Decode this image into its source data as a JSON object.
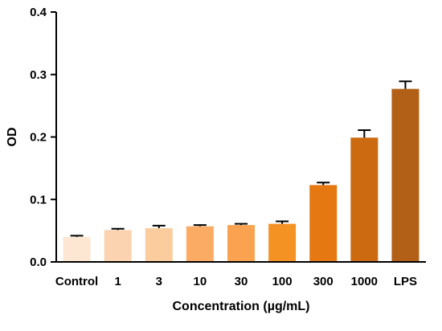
{
  "chart_data": {
    "type": "bar",
    "title": "",
    "xlabel": "Concentration (µg/mL)",
    "ylabel": "OD",
    "ylim": [
      0,
      0.4
    ],
    "yticks": [
      "0.0",
      "0.1",
      "0.2",
      "0.3",
      "0.4"
    ],
    "ytick_values": [
      0,
      0.1,
      0.2,
      0.3,
      0.4
    ],
    "categories": [
      "Control",
      "1",
      "3",
      "10",
      "30",
      "100",
      "300",
      "1000",
      "LPS"
    ],
    "values": [
      0.04,
      0.051,
      0.054,
      0.057,
      0.059,
      0.061,
      0.123,
      0.199,
      0.277
    ],
    "errors": [
      0.002,
      0.002,
      0.004,
      0.002,
      0.002,
      0.004,
      0.004,
      0.012,
      0.012
    ],
    "bar_colors": [
      "#fde6d2",
      "#fbd3b0",
      "#fbcd9e",
      "#fbab63",
      "#f9a24f",
      "#f59224",
      "#e67812",
      "#cc6a12",
      "#b25f18"
    ],
    "grid": false,
    "legend": "none"
  }
}
